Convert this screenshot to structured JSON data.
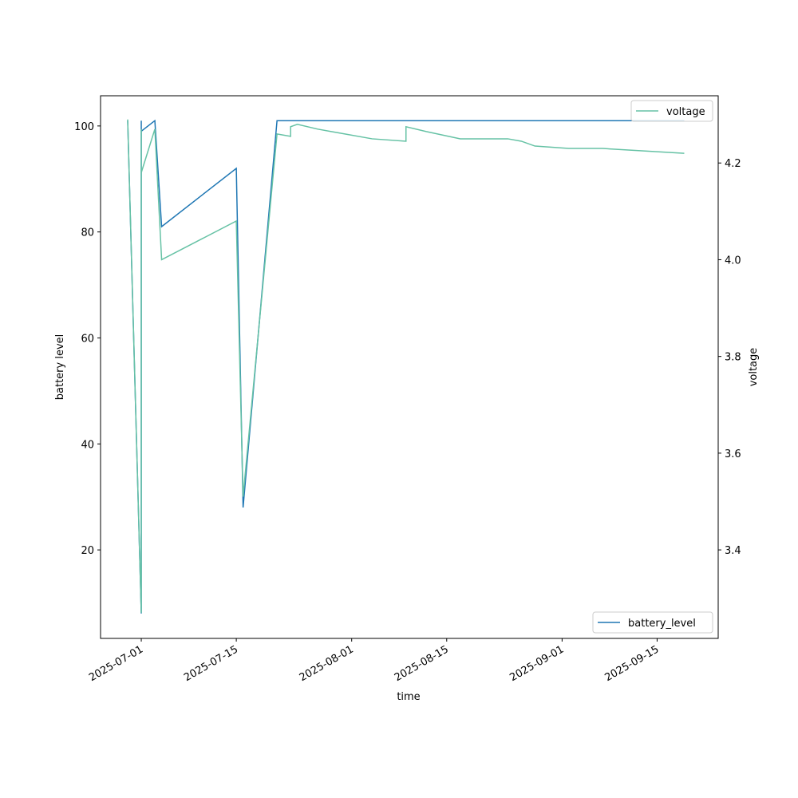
{
  "chart_data": {
    "type": "line",
    "xlabel": "time",
    "ylabel": "battery level",
    "y2label": "voltage",
    "xlim": [
      "2025-06-25",
      "2025-09-24"
    ],
    "xticks": [
      "2025-07-01",
      "2025-07-15",
      "2025-08-01",
      "2025-08-15",
      "2025-09-01",
      "2025-09-15"
    ],
    "ylim": [
      3.3,
      105.7
    ],
    "yticks": [
      20,
      40,
      60,
      80,
      100
    ],
    "y2lim": [
      3.217,
      4.339
    ],
    "y2ticks": [
      3.4,
      3.6,
      3.8,
      {
        "value": 4,
        "label": "4.0"
      },
      4.2
    ],
    "series": [
      {
        "name": "battery_level",
        "color": "#1f77b4",
        "legend": "lower right",
        "x": [
          "2025-06-29",
          "2025-07-01",
          "2025-07-01",
          "2025-07-01",
          "2025-07-03",
          "2025-07-04",
          "2025-07-15",
          "2025-07-16",
          "2025-07-21",
          "2025-09-19"
        ],
        "values": [
          101,
          8,
          101,
          99,
          101,
          81,
          92,
          28,
          101,
          101
        ]
      },
      {
        "name": "voltage",
        "color": "#66c2a5",
        "axis": "y2",
        "legend": "upper right",
        "x": [
          "2025-06-29",
          "2025-07-01",
          "2025-07-01",
          "2025-07-01",
          "2025-07-03",
          "2025-07-04",
          "2025-07-15",
          "2025-07-16",
          "2025-07-21",
          "2025-07-23",
          "2025-07-23",
          "2025-07-24",
          "2025-07-27",
          "2025-07-29",
          "2025-07-31",
          "2025-08-04",
          "2025-08-09",
          "2025-08-09",
          "2025-08-12",
          "2025-08-17",
          "2025-08-19",
          "2025-08-24",
          "2025-08-26",
          "2025-08-28",
          "2025-09-02",
          "2025-09-07",
          "2025-09-19"
        ],
        "values": [
          4.29,
          3.27,
          4.27,
          4.18,
          4.27,
          4.0,
          4.08,
          3.51,
          4.26,
          4.255,
          4.275,
          4.28,
          4.27,
          4.265,
          4.26,
          4.25,
          4.245,
          4.275,
          4.265,
          4.25,
          4.25,
          4.25,
          4.245,
          4.235,
          4.23,
          4.23,
          4.22
        ]
      }
    ]
  }
}
